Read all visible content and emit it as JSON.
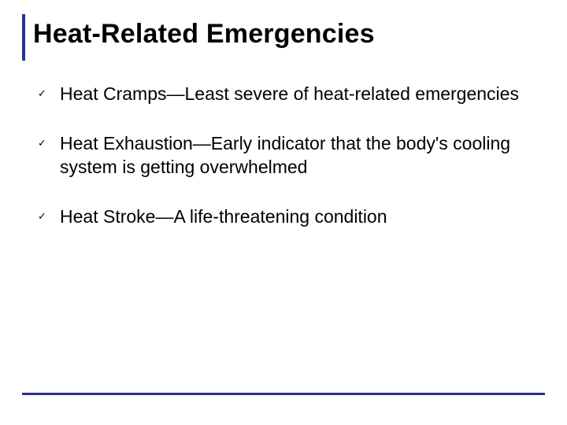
{
  "slide": {
    "title": "Heat-Related Emergencies",
    "title_fontsize": 34,
    "title_color": "#000000",
    "accent_color": "#2b2e8f",
    "background_color": "#ffffff",
    "body_fontsize": 23,
    "body_color": "#000000",
    "check_glyph": "✓",
    "items": [
      {
        "text": "Heat Cramps—Least severe of heat-related emergencies"
      },
      {
        "text": "Heat Exhaustion—Early indicator that the body's cooling system is getting overwhelmed"
      },
      {
        "text": "Heat Stroke—A life-threatening condition"
      }
    ]
  }
}
